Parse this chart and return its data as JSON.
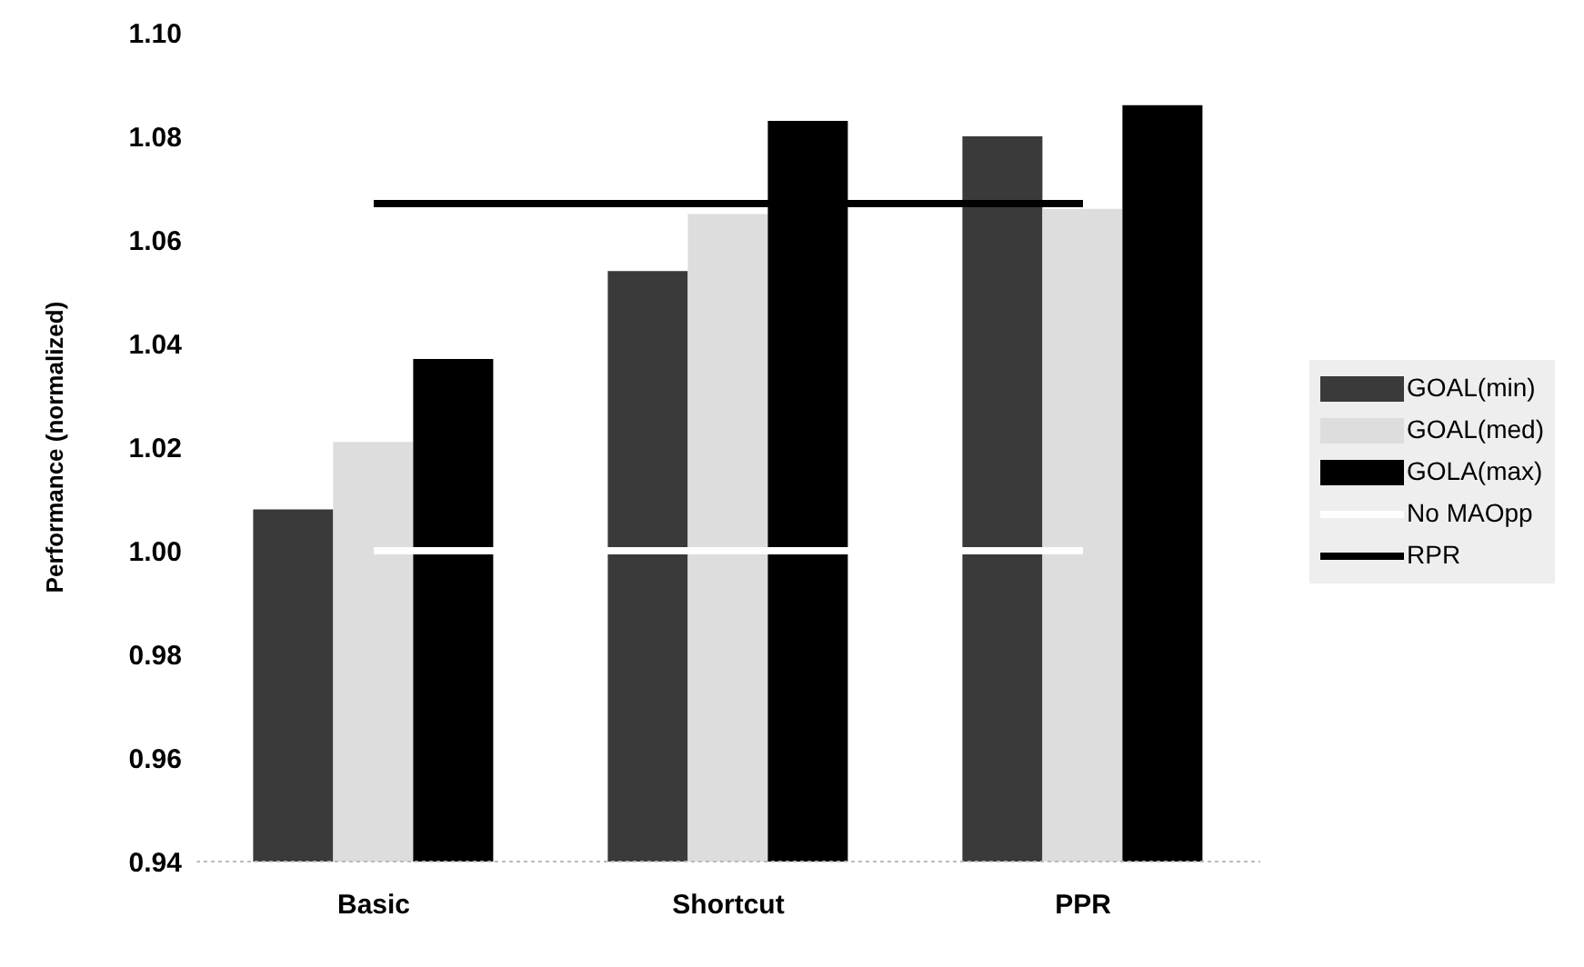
{
  "chart_data": {
    "type": "bar",
    "ylabel": "Performance (normalized)",
    "categories": [
      "Basic",
      "Shortcut",
      "PPR"
    ],
    "series": [
      {
        "name": "GOAL(min)",
        "color": "#3a3a3a",
        "values": [
          1.008,
          1.054,
          1.08
        ]
      },
      {
        "name": "GOAL(med)",
        "color": "#dddddd",
        "values": [
          1.021,
          1.065,
          1.066
        ]
      },
      {
        "name": "GOLA(max)",
        "color": "#000000",
        "values": [
          1.037,
          1.083,
          1.086
        ]
      },
      {
        "name": "No MAOpp",
        "type": "line",
        "color": "#ffffff",
        "values": [
          1.0,
          1.0,
          1.0
        ]
      },
      {
        "name": "RPR",
        "type": "line",
        "color": "#000000",
        "values": [
          1.067,
          1.067,
          1.067
        ]
      }
    ],
    "ylim": [
      0.94,
      1.1
    ],
    "yticks": [
      0.94,
      0.96,
      0.98,
      {
        "value": 1.0,
        "label": "1.00"
      },
      1.02,
      1.04,
      1.06,
      1.08,
      {
        "value": 1.1,
        "label": "1.10"
      }
    ],
    "grid": false,
    "legend": "right"
  }
}
